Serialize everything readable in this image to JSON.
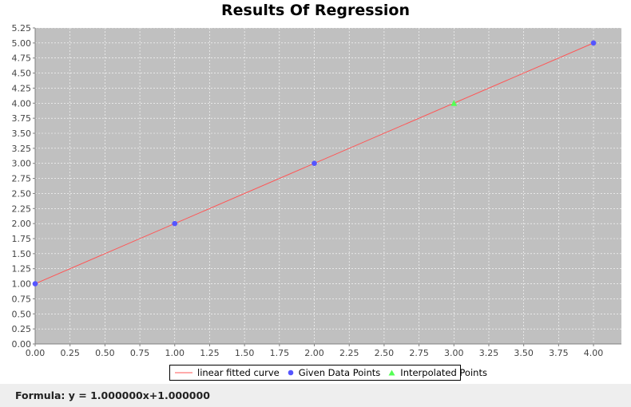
{
  "chart_data": {
    "type": "scatter",
    "title": "Results Of Regression",
    "xlim": [
      0,
      4.2
    ],
    "ylim": [
      0,
      5.25
    ],
    "xticks": [
      0,
      0.25,
      0.5,
      0.75,
      1.0,
      1.25,
      1.5,
      1.75,
      2.0,
      2.25,
      2.5,
      2.75,
      3.0,
      3.25,
      3.5,
      3.75,
      4.0
    ],
    "yticks": [
      0,
      0.25,
      0.5,
      0.75,
      1.0,
      1.25,
      1.5,
      1.75,
      2.0,
      2.25,
      2.5,
      2.75,
      3.0,
      3.25,
      3.5,
      3.75,
      4.0,
      4.25,
      4.5,
      4.75,
      5.0,
      5.25
    ],
    "grid": true,
    "legend_position": "bottom",
    "series": [
      {
        "name": "linear fitted curve",
        "kind": "line",
        "color": "#ff5555",
        "x": [
          0,
          4
        ],
        "y": [
          1,
          5
        ]
      },
      {
        "name": "Given Data Points",
        "kind": "points",
        "marker": "circle",
        "color": "#5555ff",
        "x": [
          0,
          1,
          2,
          4
        ],
        "y": [
          1,
          2,
          3,
          5
        ]
      },
      {
        "name": "Interpolated Points",
        "kind": "points",
        "marker": "triangle",
        "color": "#55ff55",
        "x": [
          3
        ],
        "y": [
          4
        ]
      }
    ]
  },
  "legend": {
    "line_label": "linear fitted curve",
    "given_label": "Given Data Points",
    "interp_label": "Interpolated Points"
  },
  "footer": {
    "formula": "Formula: y = 1.000000x+1.000000"
  },
  "colors": {
    "plot_background": "#c0c0c0",
    "grid": "#ffffff"
  }
}
